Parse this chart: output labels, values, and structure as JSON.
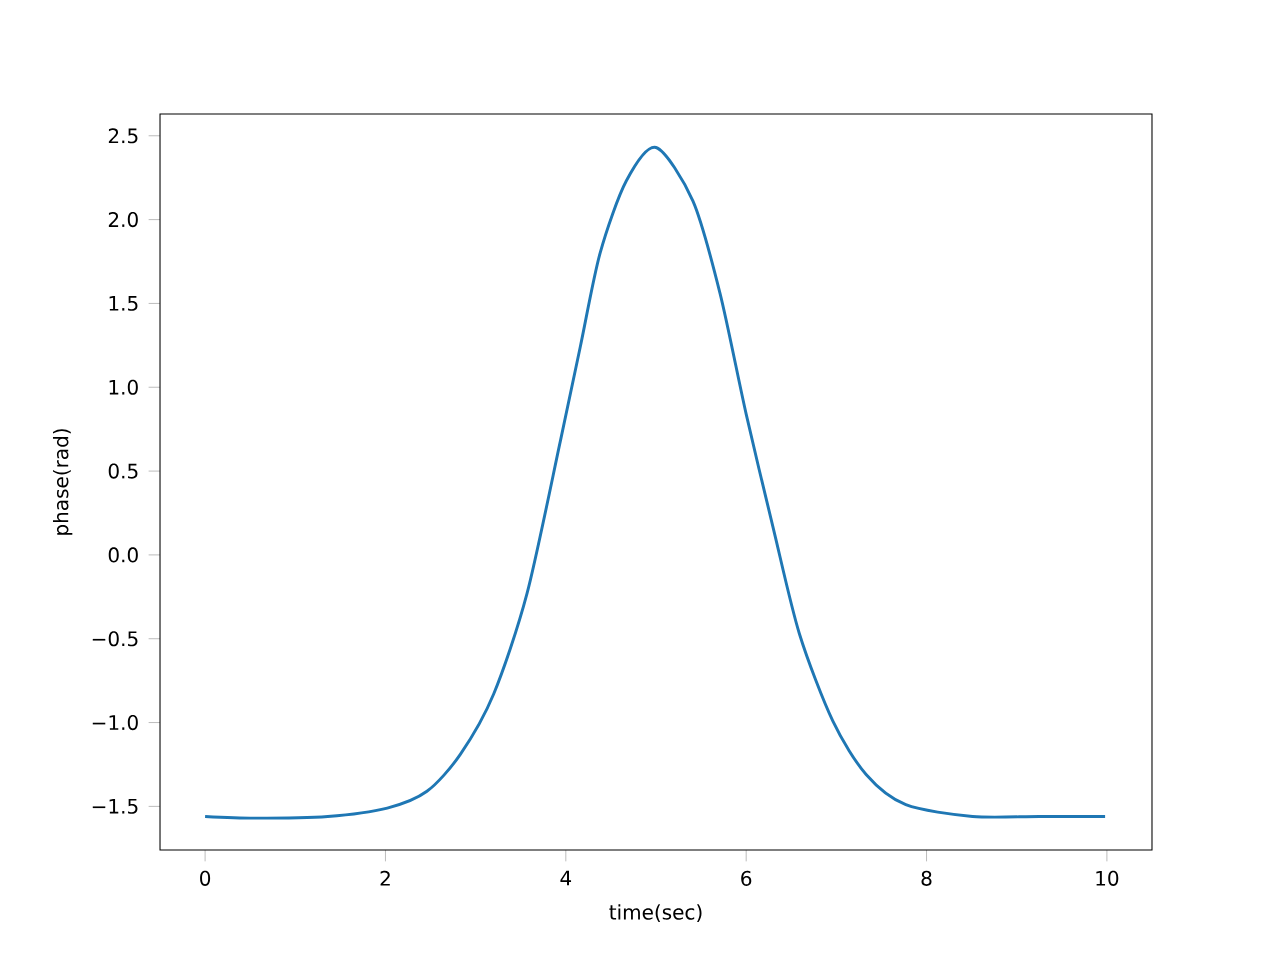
{
  "chart_data": {
    "type": "line",
    "xlabel": "time(sec)",
    "ylabel": "phase(rad)",
    "color": "#1f77b4",
    "x": [
      0,
      0.55,
      1.36,
      2.02,
      2.46,
      2.83,
      3.2,
      3.57,
      3.94,
      4.16,
      4.38,
      4.67,
      5.0,
      5.41,
      5.71,
      6.0,
      6.3,
      6.59,
      6.96,
      7.33,
      7.77,
      8.51,
      9.25,
      9.98
    ],
    "values": [
      -1.56,
      -1.57,
      -1.56,
      -1.51,
      -1.41,
      -1.19,
      -0.83,
      -0.23,
      0.68,
      1.24,
      1.8,
      2.23,
      2.43,
      2.11,
      1.56,
      0.84,
      0.16,
      -0.47,
      -0.99,
      -1.31,
      -1.49,
      -1.56,
      -1.56,
      -1.56
    ],
    "xlim": [
      -0.5,
      10.5
    ],
    "ylim": [
      -1.76,
      2.63
    ],
    "xticks": [
      0,
      2,
      4,
      6,
      8,
      10
    ],
    "yticks": [
      -1.5,
      {
        "value": -1.0,
        "label": "−1.0"
      },
      {
        "value": -0.5,
        "label": "−0.5"
      },
      {
        "value": 0.0,
        "label": "0.0"
      },
      0.5,
      {
        "value": 1.0,
        "label": "1.0"
      },
      1.5,
      {
        "value": 2.0,
        "label": "2.0"
      },
      2.5
    ],
    "grid": false,
    "marker": "none",
    "line_style": "solid"
  }
}
